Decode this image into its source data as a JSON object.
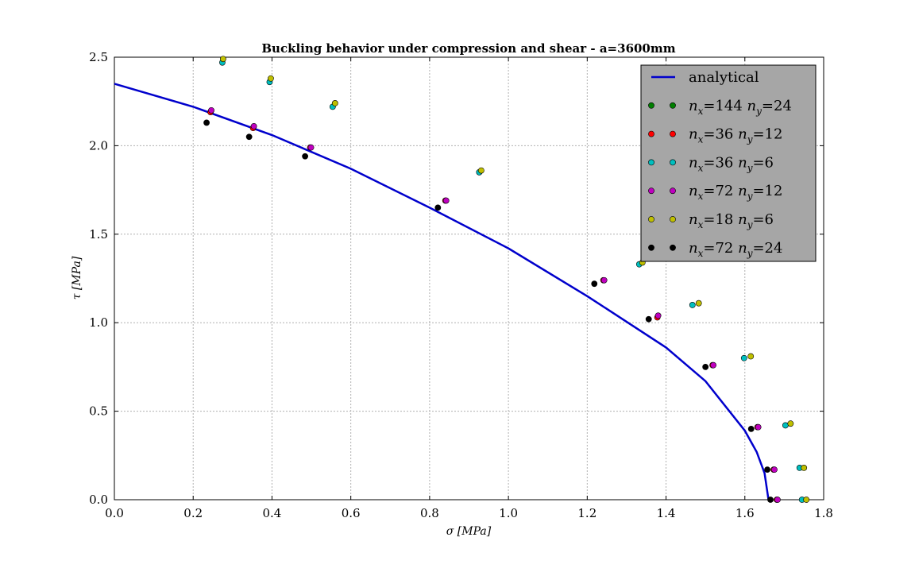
{
  "chart_data": {
    "type": "scatter",
    "title": "Buckling behavior under compression and shear - a=3600mm",
    "xlabel": "σ [MPa]",
    "ylabel": "τ [MPa]",
    "xlim": [
      0.0,
      1.8
    ],
    "ylim": [
      0.0,
      2.5
    ],
    "xticks": [
      "0.0",
      "0.2",
      "0.4",
      "0.6",
      "0.8",
      "1.0",
      "1.2",
      "1.4",
      "1.6",
      "1.8"
    ],
    "yticks": [
      "0.0",
      "0.5",
      "1.0",
      "1.5",
      "2.0",
      "2.5"
    ],
    "grid": true,
    "legend_position": "top-right",
    "analytical": {
      "name": "analytical",
      "color": "#0000cc",
      "x": [
        0.0,
        0.2,
        0.4,
        0.6,
        0.8,
        1.0,
        1.2,
        1.4,
        1.5,
        1.6,
        1.63,
        1.65,
        1.66
      ],
      "y": [
        2.35,
        2.22,
        2.06,
        1.87,
        1.65,
        1.42,
        1.15,
        0.86,
        0.67,
        0.39,
        0.27,
        0.15,
        0.0
      ]
    },
    "series": [
      {
        "name": "n_x=144 n_y=24",
        "label_parts": [
          "n",
          "x",
          "=144 ",
          "n",
          "y",
          "=24"
        ],
        "color": "#007f00",
        "x": [],
        "y": []
      },
      {
        "name": "n_x=36 n_y=12",
        "label_parts": [
          "n",
          "x",
          "=36 ",
          "n",
          "y",
          "=12"
        ],
        "color": "#ff0000",
        "x": [
          0.244,
          0.352,
          0.497,
          0.84,
          1.241,
          1.378,
          1.518,
          1.632,
          1.673,
          1.681
        ],
        "y": [
          2.19,
          2.1,
          1.99,
          1.69,
          1.24,
          1.03,
          0.76,
          0.41,
          0.17,
          0.0
        ]
      },
      {
        "name": "n_x=36 n_y=6",
        "label_parts": [
          "n",
          "x",
          "=36 ",
          "n",
          "y",
          "=6"
        ],
        "color": "#00bfbf",
        "x": [
          0.274,
          0.394,
          0.554,
          0.926,
          1.332,
          1.467,
          1.598,
          1.703,
          1.739,
          1.745
        ],
        "y": [
          2.47,
          2.36,
          2.22,
          1.85,
          1.33,
          1.1,
          0.8,
          0.42,
          0.18,
          0.0
        ]
      },
      {
        "name": "n_x=72 n_y=12",
        "label_parts": [
          "n",
          "x",
          "=72 ",
          "n",
          "y",
          "=12"
        ],
        "color": "#bf00bf",
        "x": [
          0.246,
          0.354,
          0.499,
          0.842,
          1.243,
          1.38,
          1.52,
          1.634,
          1.675,
          1.683
        ],
        "y": [
          2.2,
          2.11,
          1.99,
          1.69,
          1.24,
          1.04,
          0.76,
          0.41,
          0.17,
          0.0
        ]
      },
      {
        "name": "n_x=18 n_y=6",
        "label_parts": [
          "n",
          "x",
          "=18 ",
          "n",
          "y",
          "=6"
        ],
        "color": "#bfbf00",
        "x": [
          0.276,
          0.397,
          0.56,
          0.931,
          1.34,
          1.483,
          1.615,
          1.716,
          1.75,
          1.756
        ],
        "y": [
          2.49,
          2.38,
          2.24,
          1.86,
          1.34,
          1.11,
          0.81,
          0.43,
          0.18,
          0.0
        ]
      },
      {
        "name": "n_x=72 n_y=24",
        "label_parts": [
          "n",
          "x",
          "=72 ",
          "n",
          "y",
          "=24"
        ],
        "color": "#000000",
        "x": [
          0.234,
          0.342,
          0.484,
          0.821,
          1.218,
          1.356,
          1.5,
          1.616,
          1.657,
          1.665
        ],
        "y": [
          2.13,
          2.05,
          1.94,
          1.65,
          1.22,
          1.02,
          0.75,
          0.4,
          0.17,
          0.0
        ]
      }
    ]
  }
}
